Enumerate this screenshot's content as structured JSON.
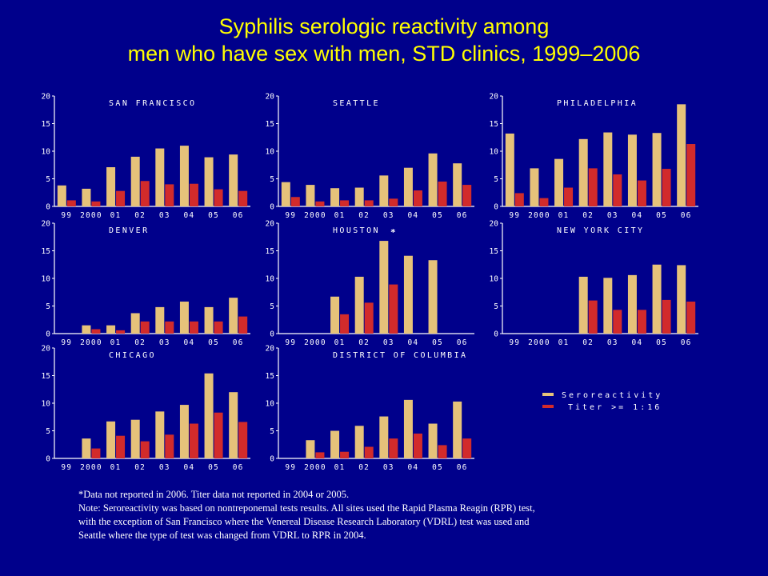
{
  "title": {
    "line1": "Syphilis serologic reactivity among",
    "line2": "men who have sex with men, STD clinics, 1999–2006"
  },
  "colors": {
    "background": "#00008b",
    "title": "#ffff00",
    "seroreactivity": "#e6c27a",
    "titer": "#d22b2b",
    "axis": "#ffffff",
    "text": "#ffffff"
  },
  "footnotes": {
    "line1": "*Data not reported in 2006.  Titer data not reported in 2004 or 2005.",
    "line2": "Note:  Seroreactivity was based on nontreponemal tests results.  All sites used the Rapid Plasma Reagin (RPR) test,",
    "line3": "with the exception of San Francisco where the Venereal Disease Research Laboratory (VDRL) test was used and",
    "line4": "Seattle where the type of test was changed from VDRL to RPR in 2004."
  },
  "chart_data": {
    "type": "bar",
    "categories": [
      "99",
      "2000",
      "01",
      "02",
      "03",
      "04",
      "05",
      "06"
    ],
    "yticks": [
      "0",
      "5",
      "10",
      "15",
      "20"
    ],
    "ylim": [
      0,
      20
    ],
    "grid": false,
    "legend": {
      "position": "right",
      "entries": [
        "Seroreactivity",
        "Titer >= 1:16"
      ]
    },
    "panels": [
      {
        "name": "SAN FRANCISCO",
        "series": [
          {
            "name": "Seroreactivity",
            "values": [
              3.8,
              3.2,
              7.1,
              9.0,
              10.5,
              11.0,
              8.9,
              9.4
            ]
          },
          {
            "name": "Titer >= 1:16",
            "values": [
              1.1,
              0.9,
              2.8,
              4.6,
              4.0,
              4.1,
              3.1,
              2.8
            ]
          }
        ]
      },
      {
        "name": "SEATTLE",
        "series": [
          {
            "name": "Seroreactivity",
            "values": [
              4.4,
              3.9,
              3.3,
              3.4,
              5.6,
              7.0,
              9.6,
              7.8
            ]
          },
          {
            "name": "Titer >= 1:16",
            "values": [
              1.7,
              0.9,
              1.1,
              1.1,
              1.4,
              2.9,
              4.5,
              3.9
            ]
          }
        ]
      },
      {
        "name": "PHILADELPHIA",
        "series": [
          {
            "name": "Seroreactivity",
            "values": [
              13.2,
              6.9,
              8.6,
              12.2,
              13.4,
              13.0,
              13.3,
              18.5
            ]
          },
          {
            "name": "Titer >= 1:16",
            "values": [
              2.4,
              1.5,
              3.4,
              6.9,
              5.8,
              4.7,
              6.8,
              11.3
            ]
          }
        ]
      },
      {
        "name": "DENVER",
        "series": [
          {
            "name": "Seroreactivity",
            "values": [
              null,
              1.5,
              1.5,
              3.7,
              4.8,
              5.8,
              4.8,
              6.5
            ]
          },
          {
            "name": "Titer >= 1:16",
            "values": [
              null,
              0.8,
              0.6,
              2.2,
              2.2,
              2.2,
              2.2,
              3.1
            ]
          }
        ]
      },
      {
        "name": "HOUSTON",
        "marker": "*",
        "series": [
          {
            "name": "Seroreactivity",
            "values": [
              null,
              null,
              6.7,
              10.3,
              16.8,
              14.1,
              13.3,
              null
            ]
          },
          {
            "name": "Titer >= 1:16",
            "values": [
              null,
              null,
              3.5,
              5.6,
              8.9,
              null,
              null,
              null
            ]
          }
        ]
      },
      {
        "name": "NEW YORK CITY",
        "series": [
          {
            "name": "Seroreactivity",
            "values": [
              null,
              null,
              null,
              10.3,
              10.1,
              10.6,
              12.5,
              12.4
            ]
          },
          {
            "name": "Titer >= 1:16",
            "values": [
              null,
              null,
              null,
              6.0,
              4.3,
              4.3,
              6.1,
              5.8
            ]
          }
        ]
      },
      {
        "name": "CHICAGO",
        "series": [
          {
            "name": "Seroreactivity",
            "values": [
              null,
              3.6,
              6.7,
              7.0,
              8.5,
              9.7,
              15.4,
              12.0
            ]
          },
          {
            "name": "Titer >= 1:16",
            "values": [
              null,
              1.8,
              4.1,
              3.1,
              4.3,
              6.3,
              8.3,
              6.6
            ]
          }
        ]
      },
      {
        "name": "DISTRICT OF COLUMBIA",
        "series": [
          {
            "name": "Seroreactivity",
            "values": [
              null,
              3.3,
              5.0,
              5.9,
              7.6,
              10.6,
              6.3,
              10.3
            ]
          },
          {
            "name": "Titer >= 1:16",
            "values": [
              null,
              1.1,
              1.2,
              2.1,
              3.6,
              4.5,
              2.4,
              3.6
            ]
          }
        ]
      }
    ]
  }
}
